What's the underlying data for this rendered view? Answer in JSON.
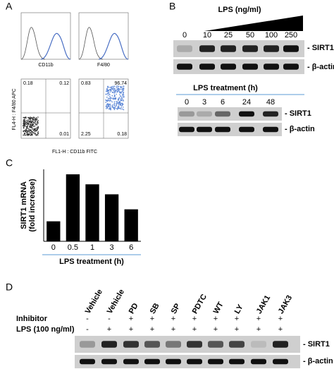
{
  "panel_a": {
    "letter": "A",
    "hist_labels": [
      "CD11b",
      "F4/80"
    ],
    "y_axis_label": "FL4-H : F4/80 APC",
    "x_axis_label": "FL1-H : CD11b FITC",
    "quadrants_left": [
      "0.18",
      "0.12",
      "0.01"
    ],
    "quadrants_right": [
      "0.83",
      "96.74",
      "2.25",
      "0.18"
    ]
  },
  "panel_b": {
    "letter": "B",
    "dose_title": "LPS (ng/ml)",
    "doses": [
      "0",
      "10",
      "25",
      "50",
      "100",
      "250"
    ],
    "time_title": "LPS treatment (h)",
    "times": [
      "0",
      "3",
      "6",
      "24",
      "48"
    ],
    "sirt1": "- SIRT1",
    "actin": "- β-actin"
  },
  "chart_data": {
    "type": "bar",
    "letter": "C",
    "y_label": [
      "SIRT1 mRNA",
      "(fold increase)"
    ],
    "x_label": "LPS treatment (h)",
    "categories": [
      "0",
      "0.5",
      "1",
      "3",
      "6"
    ],
    "values": [
      1.0,
      3.35,
      2.85,
      2.35,
      1.6
    ],
    "color": "#000000",
    "ylim": [
      0,
      3.6
    ]
  },
  "panel_d": {
    "letter": "D",
    "lanes": [
      "Vehicle",
      "Vehicle",
      "PD",
      "SB",
      "SP",
      "PDTC",
      "WT",
      "LY",
      "JAK1",
      "JAK3"
    ],
    "row_labels": [
      "Inhibitor",
      "LPS (100 ng/ml)"
    ],
    "inhibitor": [
      "-",
      "-",
      "+",
      "+",
      "+",
      "+",
      "+",
      "+",
      "+",
      "+"
    ],
    "lps": [
      "-",
      "+",
      "+",
      "+",
      "+",
      "+",
      "+",
      "+",
      "+",
      "+"
    ],
    "sirt1": "- SIRT1",
    "actin": "- β-actin"
  }
}
